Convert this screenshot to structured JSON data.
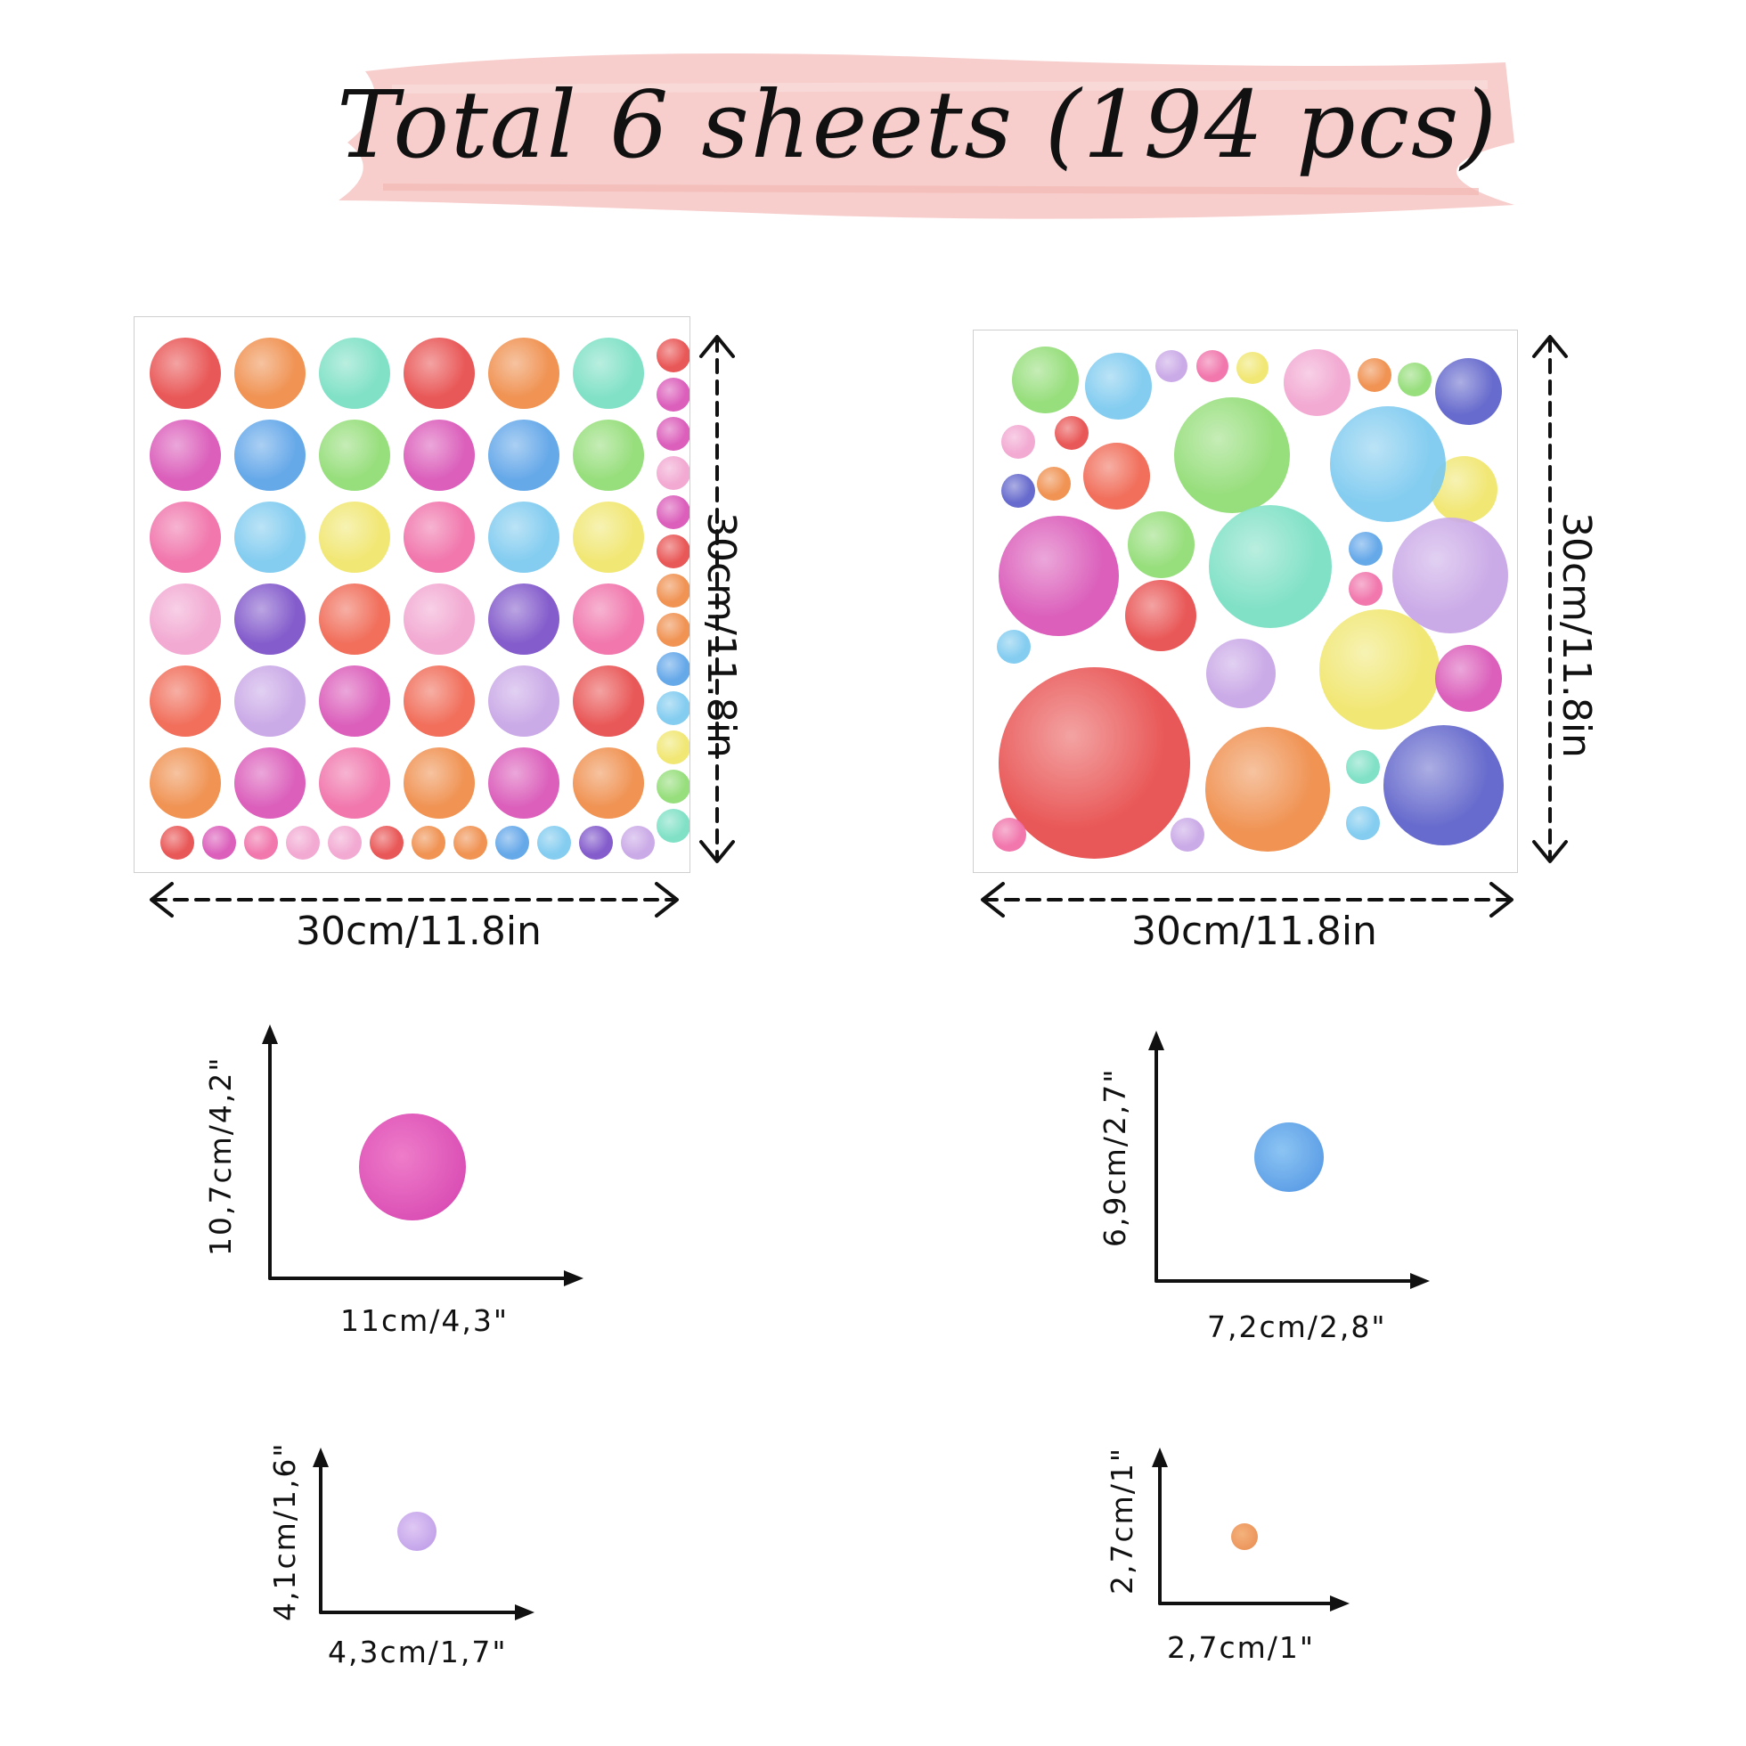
{
  "title": "Total 6 sheets (194 pcs)",
  "colors": {
    "brush": "#f6c9c6",
    "text": "#111111",
    "palette": [
      "#e84a4a",
      "#ef8a45",
      "#77dfc2",
      "#d952b6",
      "#5aa2e8",
      "#8fdc72",
      "#f06ca6",
      "#7ac9ef",
      "#f0e66a",
      "#f2a3cf",
      "#7a4fc8",
      "#f0634e",
      "#c7a4e6",
      "#5b5fc9"
    ]
  },
  "sheets": [
    {
      "name": "grid-sheet",
      "width_label": "30cm/11.8in",
      "height_label": "30cm/11.8in"
    },
    {
      "name": "mixed-sheet",
      "width_label": "30cm/11.8in",
      "height_label": "30cm/11.8in"
    }
  ],
  "size_examples": [
    {
      "name": "large-dot",
      "height_label": "10,7cm/4,2\"",
      "width_label": "11cm/4,3\"",
      "color": "#d952b6"
    },
    {
      "name": "medium-dot",
      "height_label": "6,9cm/2,7\"",
      "width_label": "7,2cm/2,8\"",
      "color": "#5aa2e8"
    },
    {
      "name": "small-dot",
      "height_label": "4,1cm/1,6\"",
      "width_label": "4,3cm/1,7\"",
      "color": "#c7a4e6"
    },
    {
      "name": "tiny-dot",
      "height_label": "2,7cm/1\"",
      "width_label": "2,7cm/1\"",
      "color": "#ef8a45"
    }
  ]
}
